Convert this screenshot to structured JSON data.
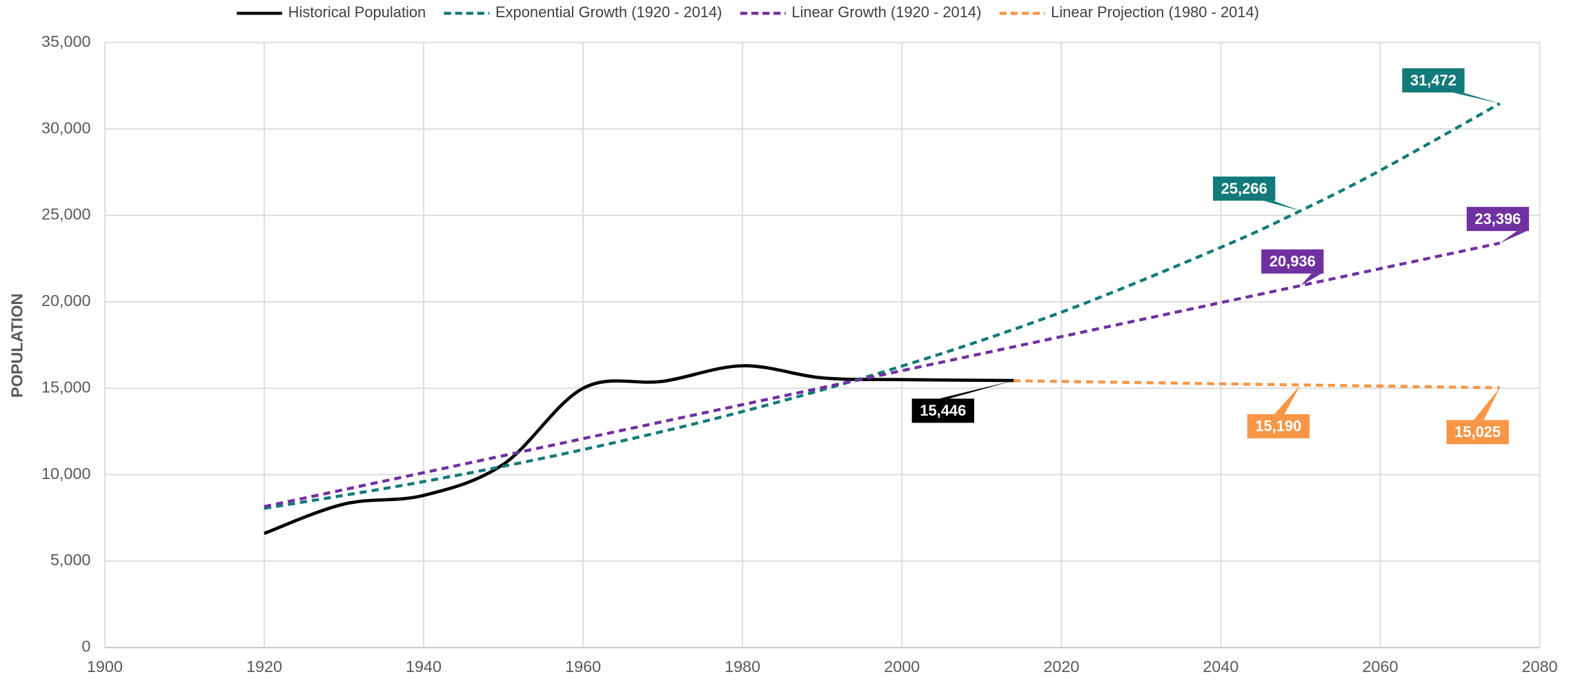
{
  "chart_data": {
    "type": "line",
    "y_label": "POPULATION",
    "xlim": [
      1900,
      2080
    ],
    "xticks": [
      1900,
      1920,
      1940,
      1960,
      1980,
      2000,
      2020,
      2040,
      2060,
      2080
    ],
    "ylim": [
      0,
      35000
    ],
    "yticks": [
      {
        "value": 0,
        "label": "0"
      },
      {
        "value": 5000,
        "label": "5,000"
      },
      {
        "value": 10000,
        "label": "10,000"
      },
      {
        "value": 15000,
        "label": "15,000"
      },
      {
        "value": 20000,
        "label": "20,000"
      },
      {
        "value": 25000,
        "label": "25,000"
      },
      {
        "value": 30000,
        "label": "30,000"
      },
      {
        "value": 35000,
        "label": "35,000"
      }
    ],
    "grid": true,
    "legend": "top",
    "series": [
      {
        "name": "Historical Population",
        "color": "#000000",
        "dash": false,
        "x": [
          1920,
          1930,
          1940,
          1950,
          1960,
          1970,
          1980,
          1990,
          2000,
          2014
        ],
        "values": [
          6600,
          8300,
          8800,
          10600,
          15000,
          15400,
          16300,
          15600,
          15500,
          15446
        ],
        "value_labels": [
          null,
          null,
          null,
          null,
          null,
          null,
          null,
          null,
          null,
          "15,446"
        ]
      },
      {
        "name": "Exponential Growth (1920 - 2014)",
        "color": "#127a78",
        "dash": true,
        "x": [
          1920,
          1940,
          1960,
          1980,
          2000,
          2020,
          2040,
          2050,
          2060,
          2075
        ],
        "values": [
          8050,
          9600,
          11450,
          13650,
          16280,
          19400,
          23150,
          25266,
          27600,
          31472
        ],
        "value_labels": [
          null,
          null,
          null,
          null,
          null,
          null,
          null,
          "25,266",
          null,
          "31,472"
        ]
      },
      {
        "name": "Linear Growth (1920 - 2014)",
        "color": "#7030a0",
        "dash": true,
        "x": [
          1920,
          2050,
          2075
        ],
        "values": [
          8150,
          20936,
          23396
        ],
        "value_labels": [
          null,
          "20,936",
          "23,396"
        ]
      },
      {
        "name": "Linear Projection (1980 - 2014)",
        "color": "#f79646",
        "dash": true,
        "x": [
          2014,
          2050,
          2075
        ],
        "values": [
          15435,
          15190,
          15025
        ],
        "value_labels": [
          null,
          "15,190",
          "15,025"
        ]
      }
    ]
  }
}
